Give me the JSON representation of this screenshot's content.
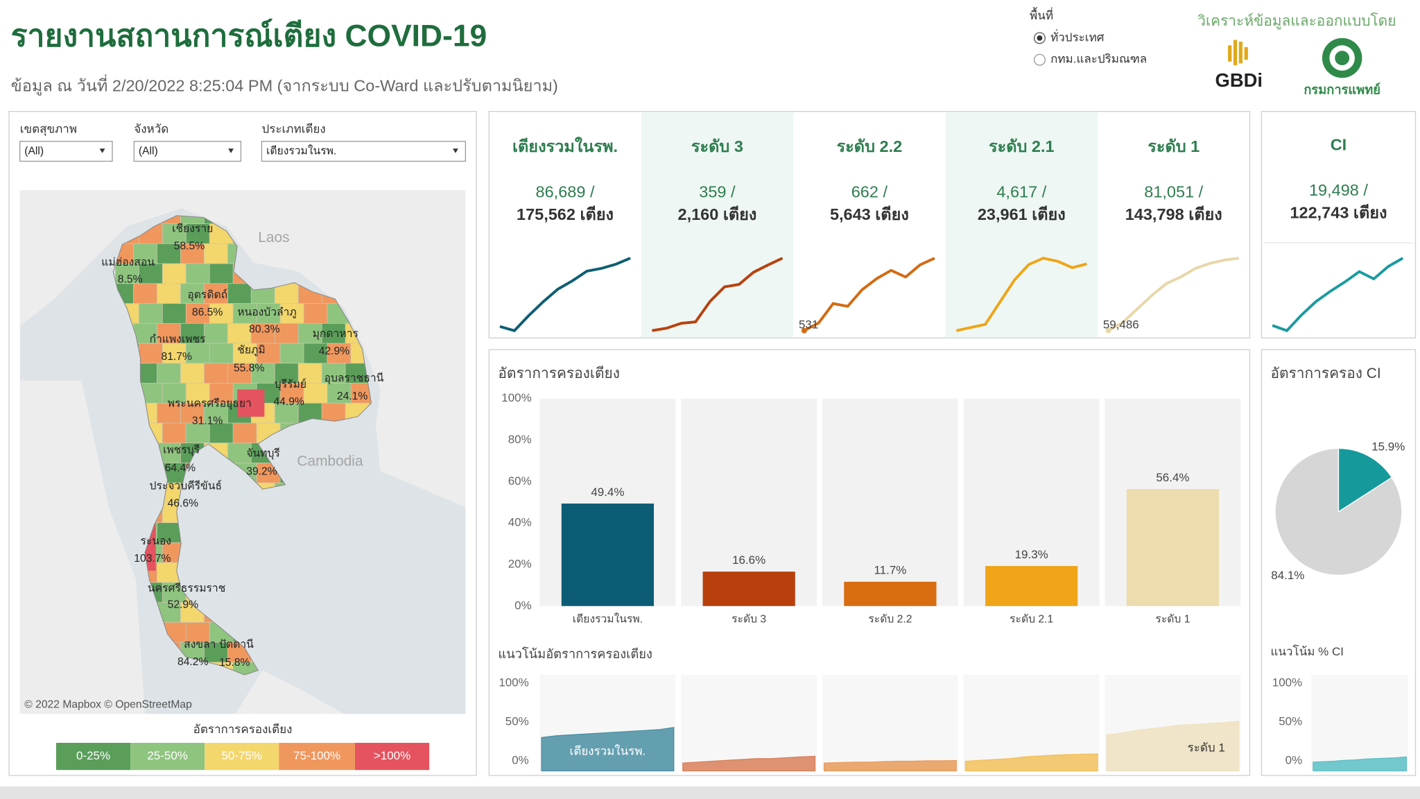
{
  "header": {
    "title": "รายงานสถานการณ์เตียง COVID-19",
    "subtitle": "ข้อมูล ณ วันที่ 2/20/2022 8:25:04 PM  (จากระบบ Co-Ward และปรับตามนิยาม)"
  },
  "area_selector": {
    "label": "พื้นที่",
    "options": [
      "ทั่วประเทศ",
      "กทม.และปริมณฑล"
    ]
  },
  "credits": {
    "text": "วิเคราะห์ข้อมูลและออกแบบโดย",
    "logos": [
      "GBDi",
      "กรมการแพทย์"
    ]
  },
  "filters": [
    {
      "label": "เขตสุขภาพ",
      "value": "(All)"
    },
    {
      "label": "จังหวัด",
      "value": "(All)"
    },
    {
      "label": "ประเภทเตียง",
      "value": "เตียงรวมในรพ."
    }
  ],
  "map": {
    "countries": [
      "Laos",
      "Cambodia"
    ],
    "provinces": [
      {
        "name": "เชียงราย",
        "rate": "58.5%"
      },
      {
        "name": "แม่ฮ่องสอน",
        "rate": "8.5%"
      },
      {
        "name": "อุตรดิตถ์",
        "rate": "86.5%"
      },
      {
        "name": "หนองบัวลำภู",
        "rate": "80.3%"
      },
      {
        "name": "มุกดาหาร",
        "rate": "42.9%"
      },
      {
        "name": "กำแพงเพชร",
        "rate": "81.7%"
      },
      {
        "name": "ชัยภูมิ",
        "rate": "55.8%"
      },
      {
        "name": "บุรีรัมย์",
        "rate": "44.9%"
      },
      {
        "name": "อุบลราชธานี",
        "rate": "24.1%"
      },
      {
        "name": "พระนครศรีอยุธยา",
        "rate": "31.1%"
      },
      {
        "name": "เพชรบุรี",
        "rate": "64.4%"
      },
      {
        "name": "จันทบุรี",
        "rate": "39.2%"
      },
      {
        "name": "ประจวบคีรีขันธ์",
        "rate": "46.6%"
      },
      {
        "name": "ระนอง",
        "rate": "103.7%"
      },
      {
        "name": "นครศรีธรรมราช",
        "rate": "52.9%"
      },
      {
        "name": "สงขลา",
        "rate": "84.2%"
      },
      {
        "name": "ปัตตานี",
        "rate": "15.8%"
      }
    ],
    "attribution": "© 2022 Mapbox © OpenStreetMap",
    "legend": {
      "title": "อัตราการครองเตียง",
      "items": [
        {
          "label": "0-25%",
          "color": "#5a9e5a"
        },
        {
          "label": "25-50%",
          "color": "#8fc47f"
        },
        {
          "label": "50-75%",
          "color": "#f3d66c"
        },
        {
          "label": "75-100%",
          "color": "#f0975e"
        },
        {
          "label": ">100%",
          "color": "#e4535f"
        }
      ]
    }
  },
  "kpis": [
    {
      "title": "เตียงรวมในรพ.",
      "value": "86,689 /",
      "total": "175,562 เตียง"
    },
    {
      "title": "ระดับ 3",
      "value": "359 /",
      "total": "2,160 เตียง"
    },
    {
      "title": "ระดับ 2.2",
      "value": "662  /",
      "total": "5,643 เตียง"
    },
    {
      "title": "ระดับ 2.1",
      "value": "4,617 /",
      "total": "23,961 เตียง"
    },
    {
      "title": "ระดับ 1",
      "value": "81,051 /",
      "total": "143,798 เตียง"
    },
    {
      "title": "CI",
      "value": "19,498 /",
      "total": "122,743 เตียง"
    }
  ],
  "chart_data": [
    {
      "type": "line",
      "color": "#0f5e73",
      "values": [
        62000,
        60500,
        66000,
        71000,
        75500,
        78500,
        82000,
        83000,
        84500,
        86689
      ]
    },
    {
      "type": "line",
      "color": "#b8420f",
      "values": [
        210,
        215,
        225,
        228,
        270,
        300,
        305,
        330,
        345,
        359
      ]
    },
    {
      "type": "line",
      "color": "#d46a12",
      "values": [
        531,
        545,
        580,
        575,
        605,
        625,
        640,
        628,
        650,
        662
      ],
      "value_labels": [
        "531",
        null,
        null,
        null,
        null,
        null,
        null,
        null,
        null,
        null
      ]
    },
    {
      "type": "line",
      "color": "#efa517",
      "values": [
        2500,
        2600,
        2700,
        3400,
        4100,
        4600,
        4800,
        4700,
        4500,
        4617
      ]
    },
    {
      "type": "line",
      "color": "#e8d7a8",
      "values": [
        59486,
        62000,
        66000,
        70000,
        73500,
        75500,
        78000,
        79500,
        80500,
        81051
      ],
      "value_labels": [
        "59,486",
        null,
        null,
        null,
        null,
        null,
        null,
        null,
        null,
        null
      ]
    },
    {
      "type": "line",
      "color": "#1a9ba0",
      "values": [
        13000,
        12500,
        14000,
        15300,
        16300,
        17200,
        18200,
        17500,
        18700,
        19498
      ]
    },
    {
      "type": "bar",
      "title": "อัตราการครองเตียง",
      "categories": [
        "เตียงรวมในรพ.",
        "ระดับ 3",
        "ระดับ 2.2",
        "ระดับ 2.1",
        "ระดับ 1"
      ],
      "values": [
        49.4,
        16.6,
        11.7,
        19.3,
        56.4
      ],
      "value_labels": [
        "49.4%",
        "16.6%",
        "11.7%",
        "19.3%",
        "56.4%"
      ],
      "colors": [
        "#0b5c74",
        "#b9400c",
        "#d76d10",
        "#efa517",
        "#ecdcae"
      ],
      "ylim": [
        0,
        100
      ],
      "yticks": [
        {
          "value": 0,
          "label": "0%"
        },
        {
          "value": 20,
          "label": "20%"
        },
        {
          "value": 40,
          "label": "40%"
        },
        {
          "value": 60,
          "label": "60%"
        },
        {
          "value": 80,
          "label": "80%"
        },
        {
          "value": 100,
          "label": "100%"
        }
      ]
    },
    {
      "type": "pie",
      "title": "อัตราการครอง CI",
      "values": [
        15.9,
        84.1
      ],
      "colors": [
        "#16999b",
        "#d6d6d6"
      ],
      "value_labels": [
        "15.9%",
        "84.1%"
      ]
    },
    {
      "type": "area",
      "title": "แนวโน้มอัตราการครองเตียง",
      "ylim": [
        0,
        100
      ],
      "yticks": [
        {
          "value": 0,
          "label": "0%"
        },
        {
          "value": 50,
          "label": "50%"
        },
        {
          "value": 100,
          "label": "100%"
        }
      ],
      "series": [
        {
          "name": "เตียงรวมในรพ.",
          "color": "#4a8fa3",
          "values": [
            38,
            40,
            41,
            42,
            43,
            44,
            45,
            46,
            47,
            49.4
          ]
        },
        {
          "color": "#d9805a",
          "values": [
            9,
            10,
            11,
            12,
            13,
            14,
            14,
            15,
            16,
            16.6
          ]
        },
        {
          "color": "#e99b5a",
          "values": [
            9,
            9.5,
            10,
            10,
            10.5,
            11,
            11,
            11.5,
            11.5,
            11.7
          ]
        },
        {
          "color": "#f3c15c",
          "values": [
            11,
            12,
            13,
            14,
            16,
            17,
            18,
            18.5,
            19,
            19.3
          ]
        },
        {
          "name": "ระดับ 1",
          "color": "#efe2c0",
          "values": [
            41,
            43,
            46,
            48,
            50,
            52,
            53,
            54,
            55,
            56.4
          ]
        }
      ]
    },
    {
      "type": "area",
      "title": "แนวโน้ม % CI",
      "color": "#5cc0c5",
      "ylim": [
        0,
        100
      ],
      "yticks": [
        {
          "value": 0,
          "label": "0%"
        },
        {
          "value": 50,
          "label": "50%"
        },
        {
          "value": 100,
          "label": "100%"
        }
      ],
      "values": [
        10,
        10.5,
        11,
        12,
        12.5,
        13.5,
        14,
        14.5,
        15,
        15.9
      ]
    }
  ]
}
